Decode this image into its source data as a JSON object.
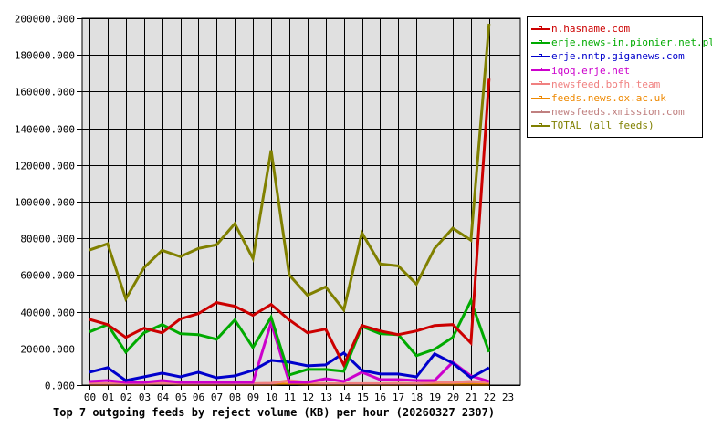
{
  "chart_data": {
    "type": "line",
    "title": "Top 7 outgoing feeds by reject volume (KB) per hour (20260327 2307)",
    "xlabel": "",
    "ylabel": "",
    "ylim": [
      0,
      200000
    ],
    "grid": true,
    "legend_position": "right",
    "y_ticks": [
      "0.000",
      "20000.000",
      "40000.000",
      "60000.000",
      "80000.000",
      "100000.000",
      "120000.000",
      "140000.000",
      "160000.000",
      "180000.000",
      "200000.000"
    ],
    "categories": [
      "00",
      "01",
      "02",
      "03",
      "04",
      "05",
      "06",
      "07",
      "08",
      "09",
      "10",
      "11",
      "12",
      "13",
      "14",
      "15",
      "16",
      "17",
      "18",
      "19",
      "20",
      "21",
      "22",
      "23"
    ],
    "series": [
      {
        "name": "n.hasname.com",
        "color": "#cc0000",
        "values": [
          35800,
          33000,
          26000,
          31000,
          28500,
          36000,
          39000,
          45000,
          43000,
          38000,
          44000,
          35500,
          28500,
          30500,
          11000,
          32500,
          29500,
          27500,
          29500,
          32500,
          33000,
          23000,
          167000,
          null
        ]
      },
      {
        "name": "erje.news-in.pionier.net.pl",
        "color": "#00aa00",
        "values": [
          29000,
          33000,
          18000,
          28500,
          33000,
          28000,
          27500,
          25000,
          35500,
          20500,
          37000,
          5500,
          8500,
          8500,
          7500,
          32000,
          28000,
          27500,
          16000,
          19500,
          26000,
          46000,
          18000,
          null
        ]
      },
      {
        "name": "erje.nntp.giganews.com",
        "color": "#0000cc",
        "values": [
          7000,
          9500,
          2500,
          4500,
          6500,
          4500,
          7000,
          4000,
          5000,
          8000,
          13500,
          12500,
          10500,
          11000,
          17500,
          8000,
          6000,
          6000,
          4500,
          17000,
          12000,
          4000,
          9500,
          null
        ]
      },
      {
        "name": "iqoq.erje.net",
        "color": "#cc00cc",
        "values": [
          2000,
          2500,
          1500,
          1500,
          2500,
          1500,
          1500,
          1500,
          1500,
          1500,
          34000,
          1500,
          1500,
          3500,
          2000,
          7000,
          3000,
          3000,
          2500,
          2500,
          12500,
          5000,
          2000,
          null
        ]
      },
      {
        "name": "newsfeed.bofh.team",
        "color": "#f08080",
        "values": [
          800,
          800,
          800,
          800,
          1000,
          800,
          800,
          800,
          800,
          800,
          1000,
          2500,
          1500,
          800,
          800,
          800,
          800,
          1000,
          800,
          1500,
          1500,
          2000,
          1500,
          null
        ]
      },
      {
        "name": "feeds.news.ox.ac.uk",
        "color": "#ee8800",
        "values": [
          300,
          300,
          300,
          300,
          600,
          300,
          300,
          300,
          300,
          300,
          300,
          600,
          300,
          300,
          300,
          300,
          300,
          300,
          300,
          300,
          300,
          300,
          300,
          null
        ]
      },
      {
        "name": "newsfeeds.xmission.com",
        "color": "#c08080",
        "values": [
          500,
          500,
          500,
          500,
          500,
          500,
          500,
          500,
          500,
          500,
          500,
          500,
          500,
          500,
          500,
          500,
          500,
          500,
          500,
          500,
          500,
          500,
          500,
          null
        ]
      },
      {
        "name": "TOTAL (all feeds)",
        "color": "#808000",
        "values": [
          73600,
          77000,
          47000,
          64000,
          73500,
          70000,
          74500,
          76500,
          88000,
          69000,
          128000,
          60000,
          49000,
          53500,
          41000,
          83000,
          66000,
          65000,
          55000,
          74500,
          85500,
          79000,
          197000,
          null
        ]
      }
    ]
  },
  "legend": {
    "items": [
      {
        "label": "n.hasname.com",
        "color": "#cc0000"
      },
      {
        "label": "erje.news-in.pionier.net.pl",
        "color": "#00aa00"
      },
      {
        "label": "erje.nntp.giganews.com",
        "color": "#0000cc"
      },
      {
        "label": "iqoq.erje.net",
        "color": "#cc00cc"
      },
      {
        "label": "newsfeed.bofh.team",
        "color": "#f08080"
      },
      {
        "label": "feeds.news.ox.ac.uk",
        "color": "#ee8800"
      },
      {
        "label": "newsfeeds.xmission.com",
        "color": "#c08080"
      },
      {
        "label": "TOTAL (all feeds)",
        "color": "#808000"
      }
    ]
  },
  "colors": {
    "plot_background": "#e0e0e0",
    "grid": "#000000",
    "page_background": "#ffffff"
  }
}
